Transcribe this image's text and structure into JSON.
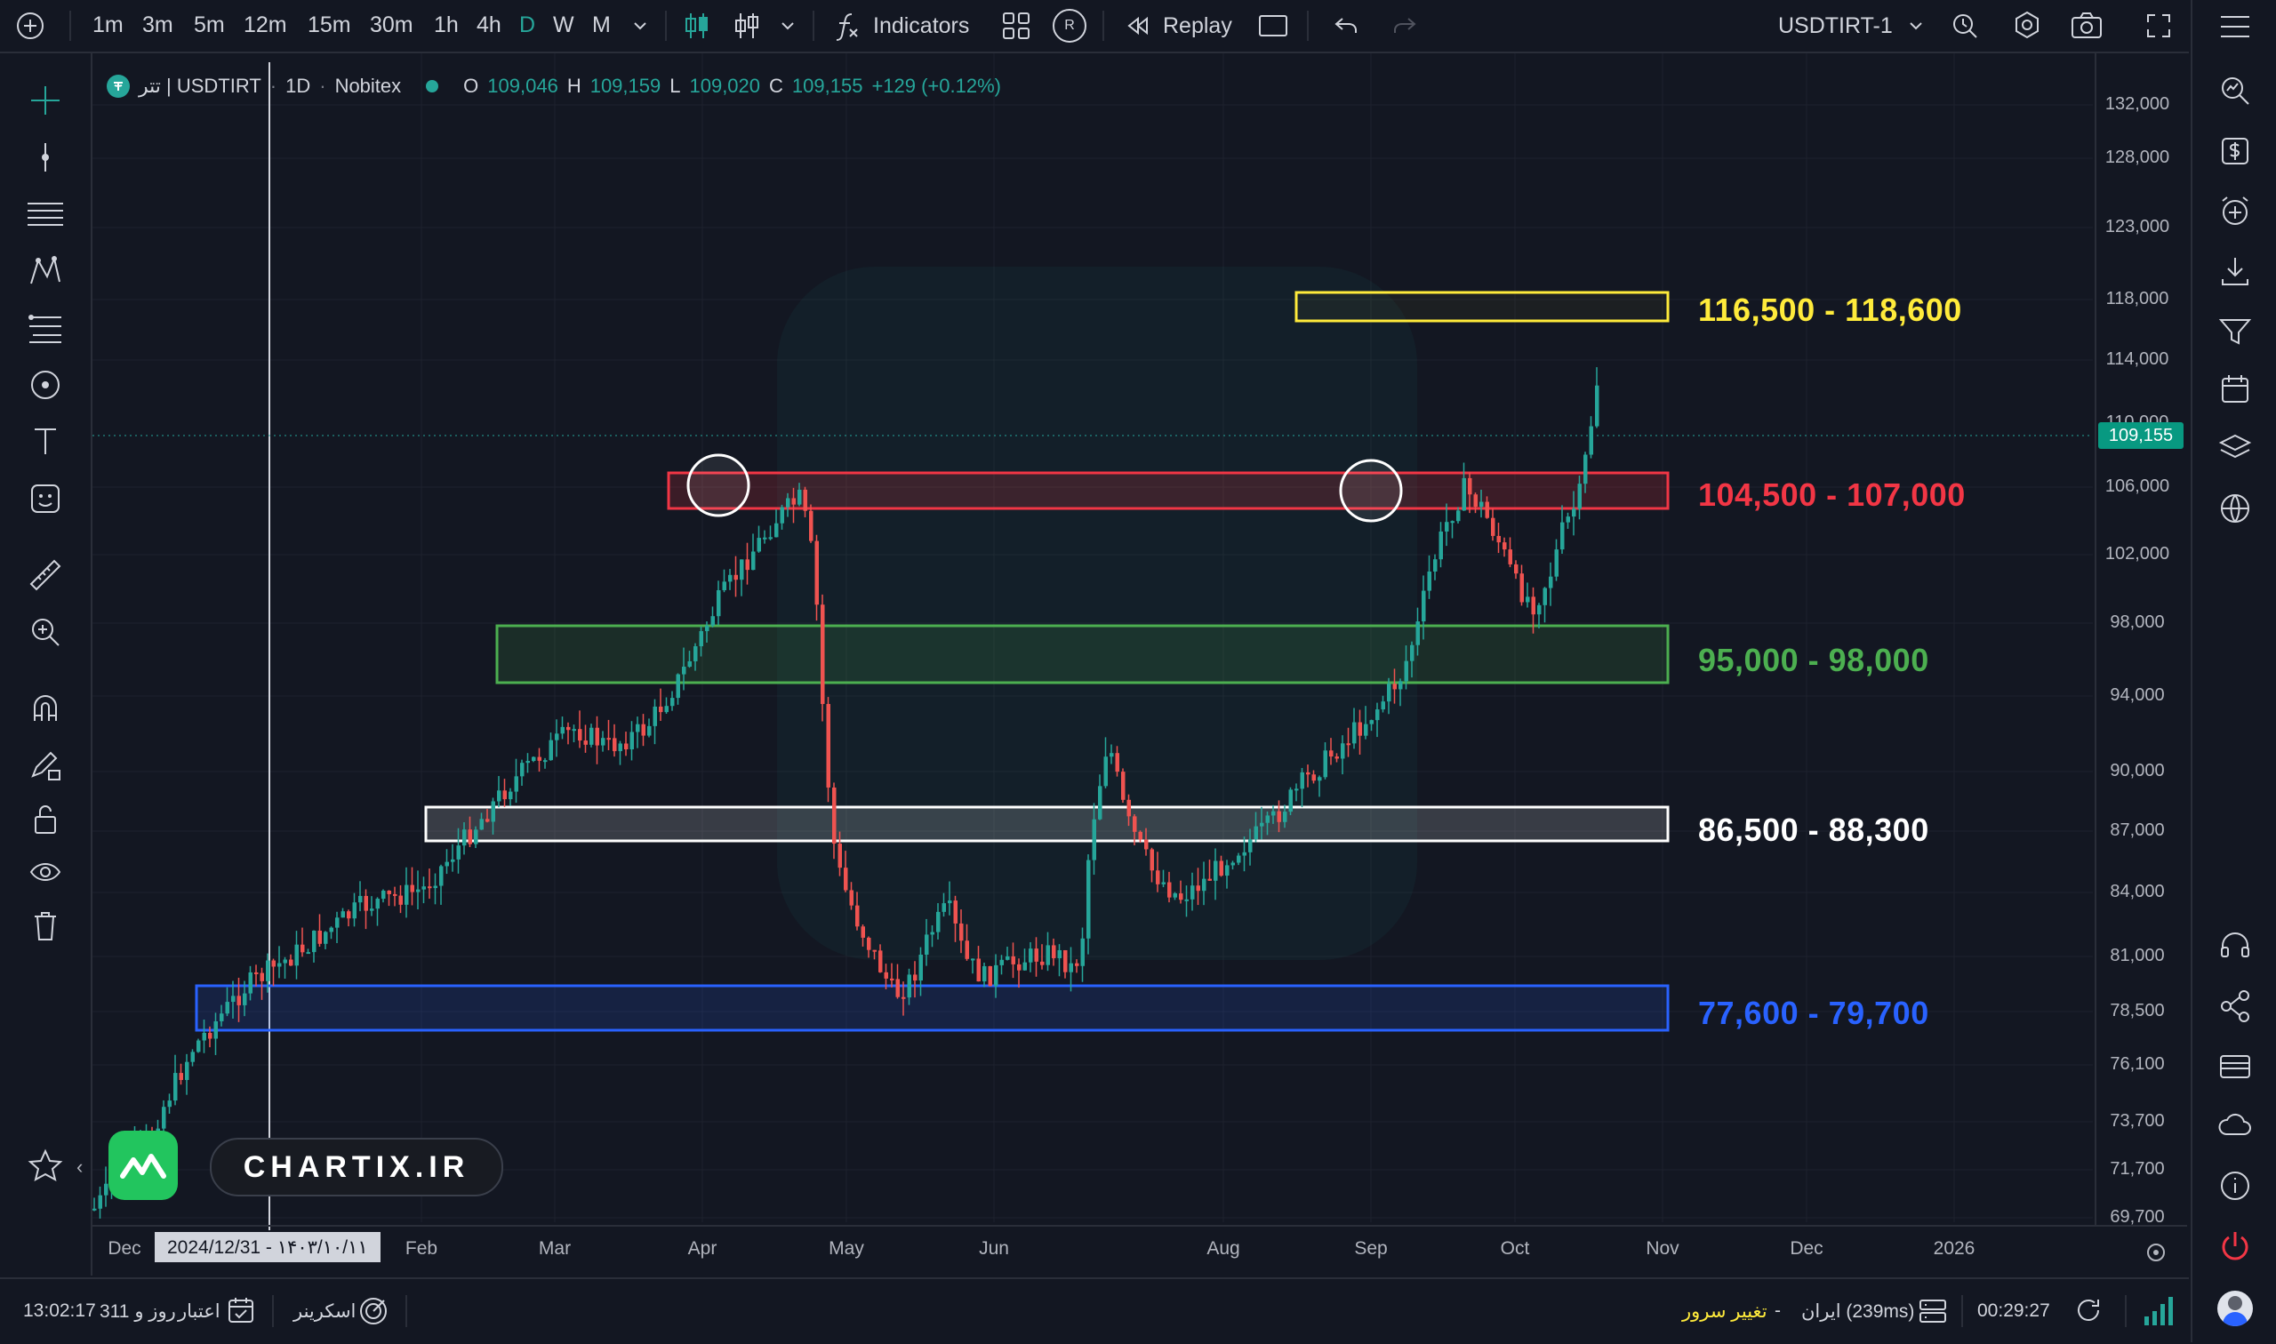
{
  "topbar": {
    "timeframes": [
      "1m",
      "3m",
      "5m",
      "12m",
      "15m",
      "30m",
      "1h",
      "4h",
      "D",
      "W",
      "M"
    ],
    "active_timeframe": "D",
    "indicators_label": "Indicators",
    "replay_label": "Replay",
    "r_badge": "R",
    "symbol_label": "USDTIRT-1",
    "icons": [
      "add-icon",
      "candles-icon",
      "bar-style-icon",
      "function-icon",
      "layout-grid-icon",
      "replay-icon",
      "rectangle-icon",
      "undo-icon",
      "redo-icon",
      "chevron-down-icon",
      "alert-icon",
      "settings-icon",
      "camera-icon",
      "fullscreen-icon"
    ]
  },
  "legend": {
    "symbol": "تتر | USDTIRT",
    "interval": "1D",
    "exchange": "Nobitex",
    "o_label": "O",
    "o_value": "109,046",
    "h_label": "H",
    "h_value": "109,159",
    "l_label": "L",
    "l_value": "109,020",
    "c_label": "C",
    "c_value": "109,155",
    "change": "+129 (+0.12%)"
  },
  "price_axis": {
    "ticks": [
      "132,000",
      "128,000",
      "123,000",
      "118,000",
      "114,000",
      "110,000",
      "106,000",
      "102,000",
      "98,000",
      "94,000",
      "90,000",
      "87,000",
      "84,000",
      "81,000",
      "78,500",
      "76,100",
      "73,700",
      "71,700",
      "69,700"
    ],
    "last_price": "109,155"
  },
  "time_axis": {
    "ticks": [
      "Dec",
      "Feb",
      "Mar",
      "Apr",
      "May",
      "Jun",
      "Aug",
      "Sep",
      "Oct",
      "Nov",
      "Dec",
      "2026"
    ],
    "crosshair_date": "2024/12/31 - ۱۴۰۳/۱۰/۱۱"
  },
  "zones": [
    {
      "label": "116,500 - 118,600",
      "color": "#ffeb3b"
    },
    {
      "label": "104,500 - 107,000",
      "color": "#f23645"
    },
    {
      "label": "95,000 - 98,000",
      "color": "#4caf50"
    },
    {
      "label": "86,500 - 88,300",
      "color": "#ffffff"
    },
    {
      "label": "77,600 - 79,700",
      "color": "#2962ff"
    }
  ],
  "colors": {
    "up": "#26a69a",
    "down": "#ef5350",
    "bg": "#131722",
    "accent": "#26a69a"
  },
  "watermark": {
    "brand": "CHARTIX.IR"
  },
  "left_toolbar_icons": [
    "crosshair-icon",
    "trend-line-icon",
    "horizontal-lines-icon",
    "pattern-icon",
    "fib-icon",
    "brush-icon",
    "text-icon",
    "emoji-icon",
    "ruler-icon",
    "zoom-in-icon",
    "magnet-icon",
    "pencil-lock-icon",
    "lock-icon",
    "eye-icon",
    "trash-icon",
    "star-icon"
  ],
  "right_toolbar_icons": [
    "menu-icon",
    "search-icon",
    "dollar-icon",
    "add-alert-icon",
    "download-icon",
    "filter-icon",
    "calendar-icon",
    "layers-icon",
    "globe-icon",
    "headset-icon",
    "share-icon",
    "card-icon",
    "cloud-icon",
    "info-icon",
    "power-icon"
  ],
  "bottom": {
    "credit_time": "13:02:17",
    "credit_days": "311 روز و",
    "credit_label": "اعتبار",
    "screener_label": "اسکرینر",
    "server_change": "تغییر سرور",
    "dash": "-",
    "server_label": "ایران (239ms)",
    "clock": "00:29:27"
  }
}
